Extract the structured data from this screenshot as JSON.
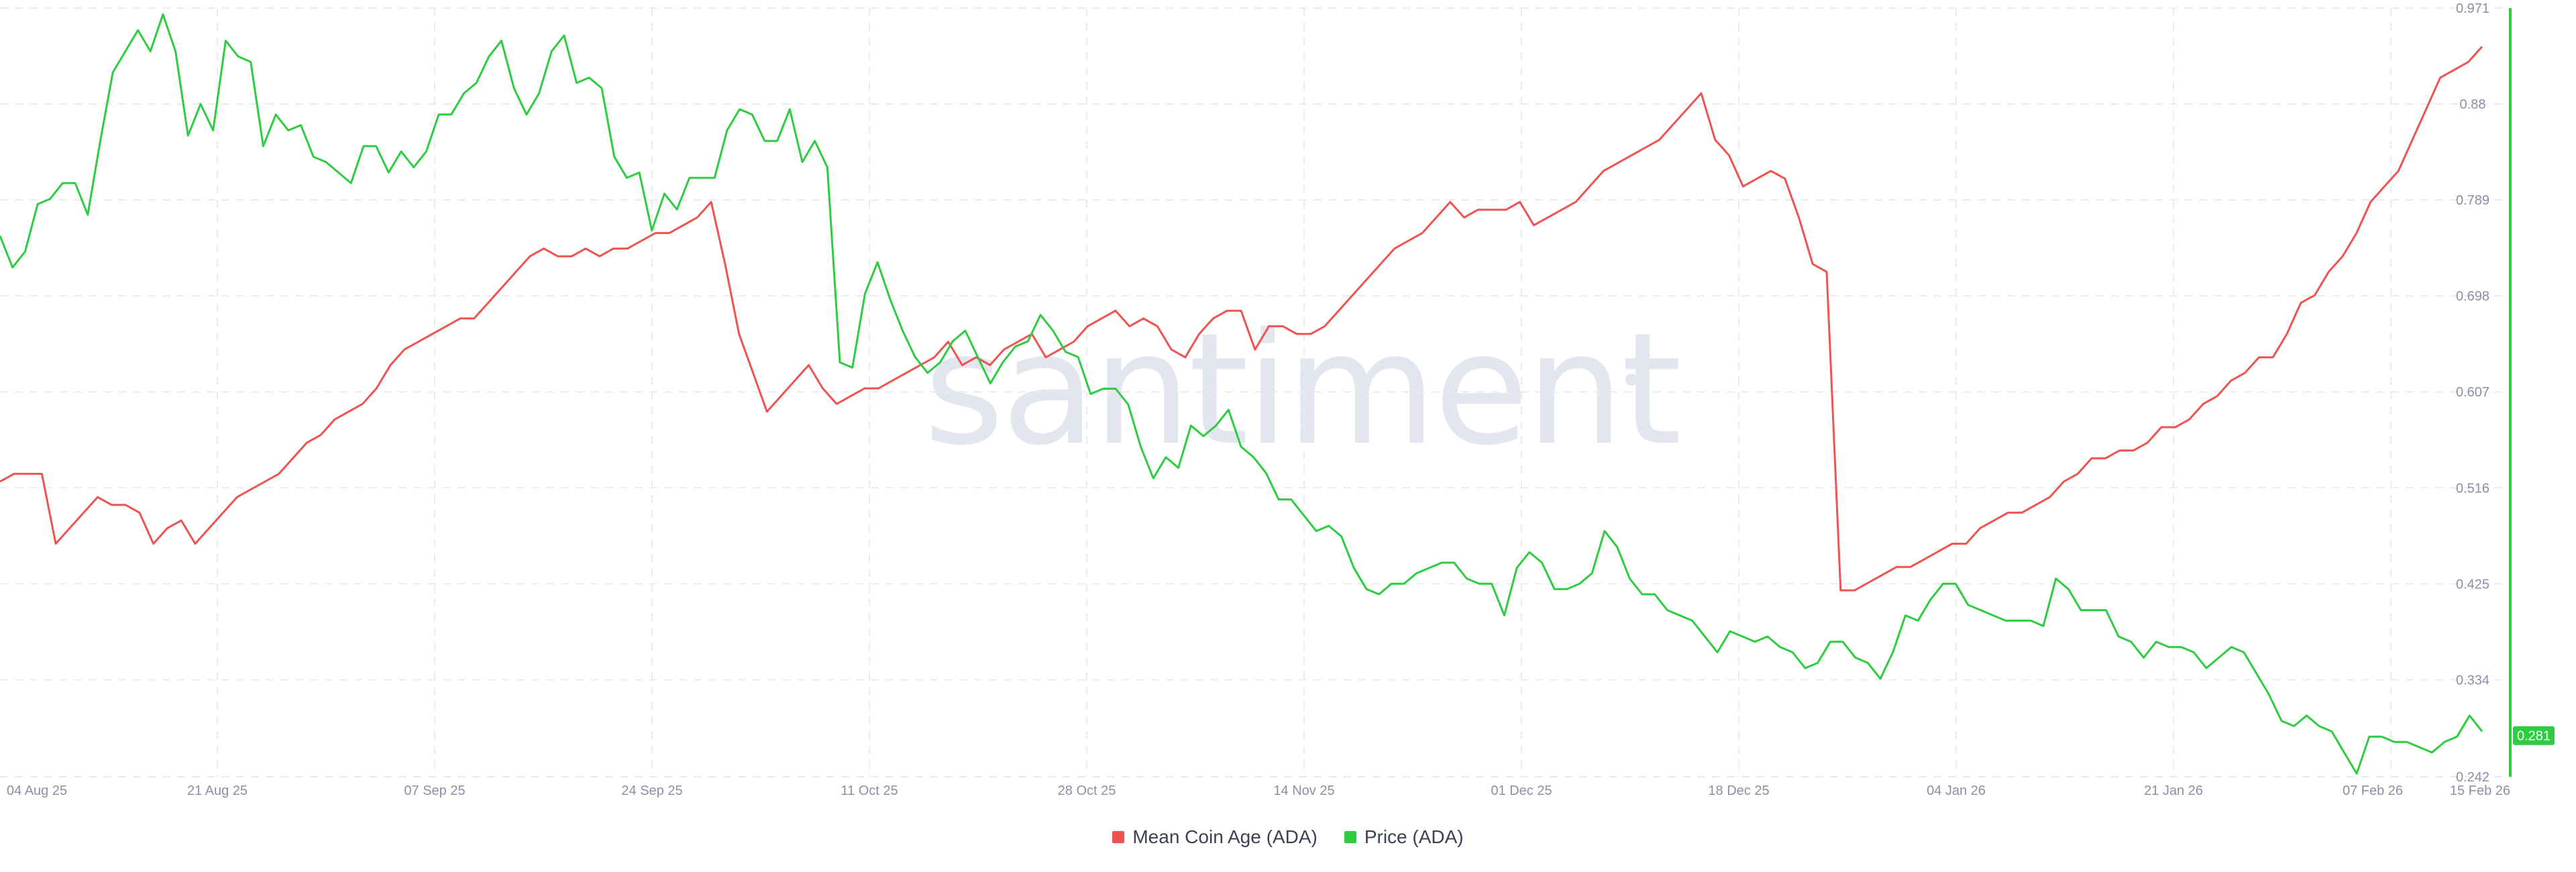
{
  "chart_data": {
    "type": "line",
    "watermark": "santiment",
    "x_tick_labels": [
      "04 Aug 25",
      "21 Aug 25",
      "07 Sep 25",
      "24 Sep 25",
      "11 Oct 25",
      "28 Oct 25",
      "14 Nov 25",
      "01 Dec 25",
      "18 Dec 25",
      "04 Jan 26",
      "21 Jan 26",
      "07 Feb 26",
      "15 Feb 26"
    ],
    "y_right": {
      "ticks": [
        "0.971",
        "0.88",
        "0.789",
        "0.698",
        "0.607",
        "0.516",
        "0.425",
        "0.334",
        "0.242"
      ],
      "min": 0.242,
      "max": 0.971,
      "current_value_label": "0.281"
    },
    "grid": true,
    "legend_position": "bottom-center",
    "series": [
      {
        "name": "Mean Coin Age (ADA)",
        "color": "#ef5350",
        "values": [
          38,
          39,
          39,
          39,
          30,
          32,
          34,
          36,
          35,
          35,
          34,
          30,
          32,
          33,
          30,
          32,
          34,
          36,
          37,
          38,
          39,
          41,
          43,
          44,
          46,
          47,
          48,
          50,
          53,
          55,
          56,
          57,
          58,
          59,
          59,
          61,
          63,
          65,
          67,
          68,
          67,
          67,
          68,
          67,
          68,
          68,
          69,
          70,
          70,
          71,
          72,
          74,
          66,
          57,
          52,
          47,
          49,
          51,
          53,
          50,
          48,
          49,
          50,
          50,
          51,
          52,
          53,
          54,
          56,
          53,
          54,
          53,
          55,
          56,
          57,
          54,
          55,
          56,
          58,
          59,
          60,
          58,
          59,
          58,
          55,
          54,
          57,
          59,
          60,
          60,
          55,
          58,
          58,
          57,
          57,
          58,
          60,
          62,
          64,
          66,
          68,
          69,
          70,
          72,
          74,
          72,
          73,
          73,
          73,
          74,
          71,
          72,
          73,
          74,
          76,
          78,
          79,
          80,
          81,
          82,
          84,
          86,
          88,
          82,
          80,
          76,
          77,
          78,
          77,
          72,
          66,
          65,
          24,
          24,
          25,
          26,
          27,
          27,
          28,
          29,
          30,
          30,
          32,
          33,
          34,
          34,
          35,
          36,
          38,
          39,
          41,
          41,
          42,
          42,
          43,
          45,
          45,
          46,
          48,
          49,
          51,
          52,
          54,
          54,
          57,
          61,
          62,
          65,
          67,
          70,
          74,
          76,
          78,
          82,
          86,
          90,
          91,
          92,
          94
        ],
        "x_frac_start": 0.0,
        "x_frac_end": 1.0,
        "y_min": 0,
        "y_max": 100
      },
      {
        "name": "Price (ADA)",
        "color": "#2ecc40",
        "values": [
          0.755,
          0.725,
          0.74,
          0.785,
          0.79,
          0.805,
          0.805,
          0.775,
          0.845,
          0.91,
          0.93,
          0.95,
          0.93,
          0.965,
          0.93,
          0.85,
          0.88,
          0.855,
          0.94,
          0.925,
          0.92,
          0.84,
          0.87,
          0.855,
          0.86,
          0.83,
          0.825,
          0.815,
          0.805,
          0.84,
          0.84,
          0.815,
          0.835,
          0.82,
          0.835,
          0.87,
          0.87,
          0.89,
          0.9,
          0.925,
          0.94,
          0.895,
          0.87,
          0.89,
          0.93,
          0.945,
          0.9,
          0.905,
          0.895,
          0.83,
          0.81,
          0.815,
          0.76,
          0.795,
          0.78,
          0.81,
          0.81,
          0.81,
          0.855,
          0.875,
          0.87,
          0.845,
          0.845,
          0.875,
          0.825,
          0.845,
          0.82,
          0.635,
          0.63,
          0.7,
          0.73,
          0.695,
          0.665,
          0.64,
          0.625,
          0.635,
          0.655,
          0.665,
          0.64,
          0.615,
          0.635,
          0.65,
          0.655,
          0.68,
          0.665,
          0.645,
          0.64,
          0.605,
          0.61,
          0.61,
          0.595,
          0.555,
          0.525,
          0.545,
          0.535,
          0.575,
          0.565,
          0.575,
          0.59,
          0.555,
          0.545,
          0.53,
          0.505,
          0.505,
          0.49,
          0.475,
          0.48,
          0.47,
          0.44,
          0.42,
          0.415,
          0.425,
          0.425,
          0.435,
          0.44,
          0.445,
          0.445,
          0.43,
          0.425,
          0.425,
          0.395,
          0.44,
          0.455,
          0.445,
          0.42,
          0.42,
          0.425,
          0.435,
          0.475,
          0.46,
          0.43,
          0.415,
          0.415,
          0.4,
          0.395,
          0.39,
          0.375,
          0.36,
          0.38,
          0.375,
          0.37,
          0.375,
          0.365,
          0.36,
          0.345,
          0.35,
          0.37,
          0.37,
          0.355,
          0.35,
          0.335,
          0.36,
          0.395,
          0.39,
          0.41,
          0.425,
          0.425,
          0.405,
          0.4,
          0.395,
          0.39,
          0.39,
          0.39,
          0.385,
          0.43,
          0.42,
          0.4,
          0.4,
          0.4,
          0.375,
          0.37,
          0.355,
          0.37,
          0.365,
          0.365,
          0.36,
          0.345,
          0.355,
          0.365,
          0.36,
          0.34,
          0.32,
          0.295,
          0.29,
          0.3,
          0.29,
          0.285,
          0.265,
          0.245,
          0.28,
          0.28,
          0.275,
          0.275,
          0.27,
          0.265,
          0.275,
          0.28,
          0.3,
          0.285
        ],
        "x_frac_start": 0.0,
        "x_frac_end": 1.0
      }
    ]
  },
  "legend": {
    "items": [
      {
        "label": "Mean Coin Age (ADA)",
        "color": "#ef5350"
      },
      {
        "label": "Price (ADA)",
        "color": "#2ecc40"
      }
    ]
  }
}
